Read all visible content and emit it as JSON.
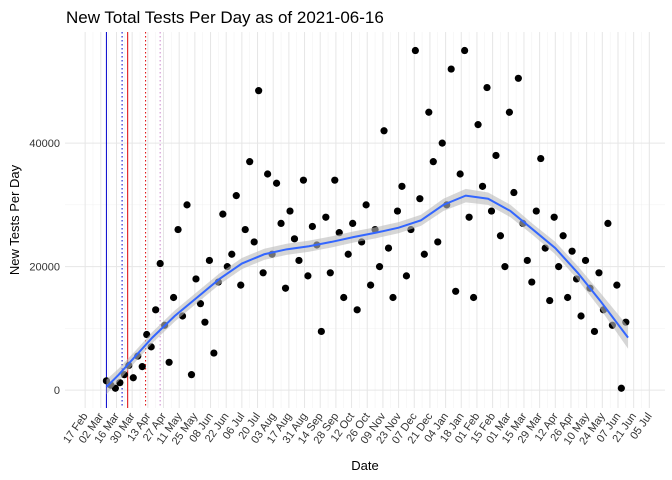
{
  "chart_data": {
    "type": "scatter",
    "title": "New Total Tests Per Day as of 2021-06-16",
    "x_label": "Date",
    "y_label": "New Tests Per Day",
    "xlim": [
      -18,
      518
    ],
    "ylim": [
      -2900,
      58000
    ],
    "xticks": [
      {
        "value": 0,
        "label": "17 Feb"
      },
      {
        "value": 14,
        "label": "02 Mar"
      },
      {
        "value": 28,
        "label": "16 Mar"
      },
      {
        "value": 42,
        "label": "30 Mar"
      },
      {
        "value": 56,
        "label": "13 Apr"
      },
      {
        "value": 70,
        "label": "27 Apr"
      },
      {
        "value": 84,
        "label": "11 May"
      },
      {
        "value": 98,
        "label": "25 May"
      },
      {
        "value": 112,
        "label": "08 Jun"
      },
      {
        "value": 126,
        "label": "22 Jun"
      },
      {
        "value": 140,
        "label": "06 Jul"
      },
      {
        "value": 154,
        "label": "20 Jul"
      },
      {
        "value": 168,
        "label": "03 Aug"
      },
      {
        "value": 182,
        "label": "17 Aug"
      },
      {
        "value": 196,
        "label": "31 Aug"
      },
      {
        "value": 210,
        "label": "14 Sep"
      },
      {
        "value": 224,
        "label": "28 Sep"
      },
      {
        "value": 238,
        "label": "12 Oct"
      },
      {
        "value": 252,
        "label": "26 Oct"
      },
      {
        "value": 266,
        "label": "09 Nov"
      },
      {
        "value": 280,
        "label": "23 Nov"
      },
      {
        "value": 294,
        "label": "07 Dec"
      },
      {
        "value": 308,
        "label": "21 Dec"
      },
      {
        "value": 322,
        "label": "04 Jan"
      },
      {
        "value": 336,
        "label": "18 Jan"
      },
      {
        "value": 350,
        "label": "01 Feb"
      },
      {
        "value": 364,
        "label": "15 Feb"
      },
      {
        "value": 378,
        "label": "01 Mar"
      },
      {
        "value": 392,
        "label": "15 Mar"
      },
      {
        "value": 406,
        "label": "29 Mar"
      },
      {
        "value": 420,
        "label": "12 Apr"
      },
      {
        "value": 434,
        "label": "26 Apr"
      },
      {
        "value": 448,
        "label": "10 May"
      },
      {
        "value": 462,
        "label": "24 May"
      },
      {
        "value": 476,
        "label": "07 Jun"
      },
      {
        "value": 490,
        "label": "21 Jun"
      },
      {
        "value": 504,
        "label": "05 Jul"
      }
    ],
    "yticks": [
      0,
      20000,
      40000
    ],
    "grid": true,
    "point_color": "#000000",
    "x": [
      19,
      23,
      27,
      31,
      35,
      39,
      43,
      47,
      51,
      55,
      59,
      63,
      67,
      71,
      75,
      79,
      83,
      87,
      91,
      95,
      99,
      103,
      107,
      111,
      115,
      119,
      123,
      127,
      131,
      135,
      139,
      143,
      147,
      151,
      155,
      159,
      163,
      167,
      171,
      175,
      179,
      183,
      187,
      191,
      195,
      199,
      203,
      207,
      211,
      215,
      219,
      223,
      227,
      231,
      235,
      239,
      243,
      247,
      251,
      255,
      259,
      263,
      267,
      271,
      275,
      279,
      283,
      287,
      291,
      295,
      299,
      303,
      307,
      311,
      315,
      319,
      323,
      327,
      331,
      335,
      339,
      343,
      347,
      351,
      355,
      359,
      363,
      367,
      371,
      375,
      379,
      383,
      387,
      391,
      395,
      399,
      403,
      407,
      411,
      415,
      419,
      423,
      427,
      431,
      435,
      439,
      443,
      447,
      451,
      455,
      459,
      463,
      467,
      471,
      475,
      479,
      483
    ],
    "values": [
      1500,
      800,
      300,
      1200,
      2500,
      4000,
      2000,
      5500,
      3800,
      9000,
      7000,
      13000,
      20500,
      10500,
      4500,
      15000,
      26000,
      12000,
      30000,
      2500,
      18000,
      14000,
      11000,
      21000,
      6000,
      17500,
      28500,
      20000,
      22000,
      31500,
      17000,
      26000,
      37000,
      24000,
      48500,
      19000,
      35000,
      22000,
      33500,
      27000,
      16500,
      29000,
      24500,
      21000,
      34000,
      18500,
      26500,
      23500,
      9500,
      28000,
      19000,
      34000,
      25500,
      15000,
      22000,
      27000,
      13000,
      24000,
      30000,
      17000,
      26000,
      20000,
      42000,
      23000,
      15000,
      29000,
      33000,
      18500,
      26000,
      55000,
      31000,
      22000,
      45000,
      37000,
      24000,
      40000,
      30000,
      52000,
      16000,
      35000,
      55000,
      28000,
      15000,
      43000,
      33000,
      49000,
      29000,
      38000,
      25000,
      20000,
      45000,
      32000,
      50500,
      27000,
      21000,
      17500,
      29000,
      37500,
      23000,
      14500,
      28000,
      20000,
      25000,
      15000,
      22500,
      18000,
      12000,
      21000,
      16500,
      9500,
      19000,
      13000,
      27000,
      10500,
      17000,
      300,
      11000
    ],
    "smooth": {
      "color": "#3366ff",
      "band_color": "#bbbbbb",
      "x": [
        19,
        30,
        45,
        60,
        80,
        100,
        120,
        140,
        160,
        180,
        200,
        220,
        240,
        260,
        280,
        300,
        320,
        340,
        360,
        380,
        400,
        420,
        440,
        460,
        485
      ],
      "y": [
        500,
        2500,
        5500,
        8500,
        12000,
        15000,
        18000,
        20500,
        22000,
        22800,
        23300,
        24000,
        24800,
        25500,
        26300,
        27500,
        30000,
        31500,
        31000,
        29000,
        26000,
        23000,
        19000,
        14500,
        8500
      ],
      "lower": [
        -700,
        1500,
        4600,
        7600,
        11100,
        14100,
        17100,
        19600,
        21100,
        21900,
        22400,
        23100,
        23900,
        24600,
        25400,
        26600,
        29000,
        30400,
        30000,
        28000,
        25100,
        22000,
        17900,
        13200,
        6700
      ],
      "upper": [
        1700,
        3500,
        6400,
        9400,
        12900,
        15900,
        18900,
        21400,
        22900,
        23700,
        24200,
        24900,
        25700,
        26400,
        27200,
        28400,
        31000,
        32600,
        32000,
        30000,
        26900,
        24000,
        20100,
        15800,
        10300
      ]
    },
    "vlines": [
      {
        "x": 19,
        "color": "#0000cc",
        "style": "solid"
      },
      {
        "x": 33,
        "color": "#0000cc",
        "style": "dotted"
      },
      {
        "x": 38,
        "color": "#dd0000",
        "style": "solid"
      },
      {
        "x": 54,
        "color": "#dd0000",
        "style": "dotted"
      },
      {
        "x": 67,
        "color": "#cc88cc",
        "style": "dotted"
      }
    ]
  }
}
